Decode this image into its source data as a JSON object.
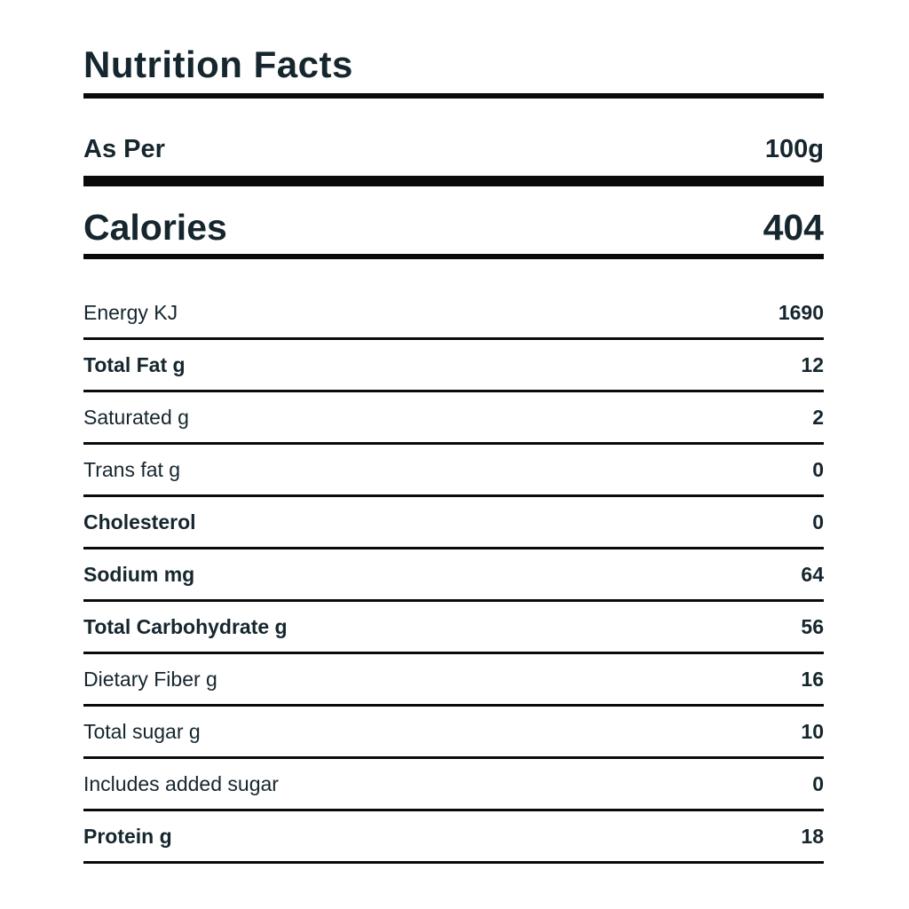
{
  "label": {
    "title": "Nutrition Facts",
    "serving": {
      "label": "As Per",
      "value": "100g"
    },
    "calories": {
      "label": "Calories",
      "value": "404"
    },
    "rows": [
      {
        "name": "Energy KJ",
        "value": "1690",
        "bold": false
      },
      {
        "name": "Total Fat g",
        "value": "12",
        "bold": true
      },
      {
        "name": "Saturated g",
        "value": "2",
        "bold": false
      },
      {
        "name": "Trans fat g",
        "value": "0",
        "bold": false
      },
      {
        "name": "Cholesterol",
        "value": "0",
        "bold": true
      },
      {
        "name": "Sodium mg",
        "value": "64",
        "bold": true
      },
      {
        "name": "Total Carbohydrate g",
        "value": "56",
        "bold": true
      },
      {
        "name": "Dietary Fiber g",
        "value": "16",
        "bold": false
      },
      {
        "name": "Total sugar g",
        "value": "10",
        "bold": false
      },
      {
        "name": "Includes added sugar",
        "value": "0",
        "bold": false
      },
      {
        "name": "Protein g",
        "value": "18",
        "bold": true
      }
    ],
    "colors": {
      "text": "#16262e",
      "rule": "#0a0a0a",
      "background": "#ffffff"
    }
  }
}
